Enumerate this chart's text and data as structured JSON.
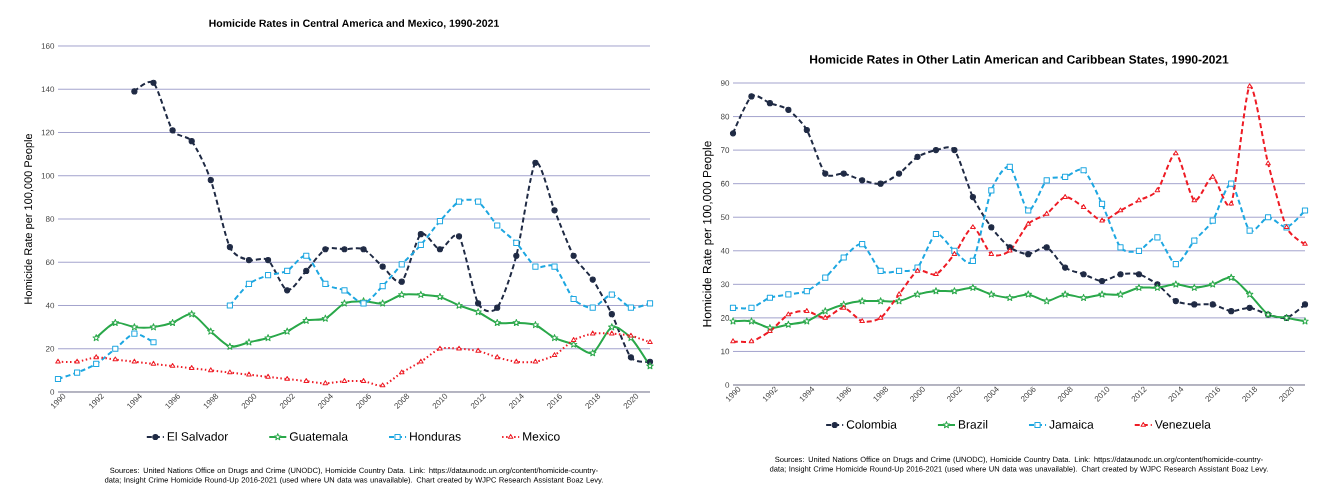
{
  "chart_data": [
    {
      "type": "line",
      "title": "Homicide Rates in Central America and Mexico, 1990-2021",
      "ylabel": "Homicide Rate per 100,000 People",
      "x": [
        1990,
        1991,
        1992,
        1993,
        1994,
        1995,
        1996,
        1997,
        1998,
        1999,
        2000,
        2001,
        2002,
        2003,
        2004,
        2005,
        2006,
        2007,
        2008,
        2009,
        2010,
        2011,
        2012,
        2013,
        2014,
        2015,
        2016,
        2017,
        2018,
        2019,
        2020,
        2021
      ],
      "xlim": [
        1990,
        2021
      ],
      "ylim": [
        0,
        160
      ],
      "xticks": [
        1990,
        1992,
        1994,
        1996,
        1998,
        2000,
        2002,
        2004,
        2006,
        2008,
        2010,
        2012,
        2014,
        2016,
        2018,
        2020
      ],
      "yticks": [
        0,
        20,
        40,
        60,
        80,
        100,
        120,
        140,
        160
      ],
      "grid": "y",
      "legend": "bottom",
      "annotations": [
        "Sources: United Nations Office on Drugs and Crime (UNODC), Homicide Country Data. Link: https://dataunodc.un.org/content/homicide-country-data; Insight Crime Homicide Round-Up 2016-2021 (used where UN data was unavailable). Chart created by WJPC Research Assistant Boaz Levy."
      ],
      "series": [
        {
          "name": "El Salvador",
          "color": "#1f2a44",
          "marker": "circle",
          "line_style": "dashed",
          "values": [
            null,
            null,
            null,
            null,
            139,
            143,
            121,
            116,
            98,
            67,
            61,
            61,
            47,
            56,
            66,
            66,
            66,
            58,
            51,
            73,
            66,
            72,
            41,
            39,
            63,
            106,
            84,
            63,
            52,
            36,
            16,
            14
          ]
        },
        {
          "name": "Guatemala",
          "color": "#2aa84a",
          "marker": "star",
          "line_style": "solid",
          "values": [
            null,
            null,
            25,
            32,
            30,
            30,
            32,
            36,
            28,
            21,
            23,
            25,
            28,
            33,
            34,
            41,
            42,
            41,
            45,
            45,
            44,
            40,
            37,
            32,
            32,
            31,
            25,
            22,
            18,
            30,
            25,
            12
          ]
        },
        {
          "name": "Honduras",
          "color": "#1ea7e1",
          "marker": "square",
          "line_style": "dashed",
          "values": [
            6,
            9,
            13,
            20,
            27,
            23,
            null,
            null,
            null,
            40,
            50,
            54,
            56,
            63,
            50,
            47,
            41,
            49,
            59,
            68,
            79,
            88,
            88,
            77,
            69,
            58,
            58,
            43,
            39,
            45,
            39,
            41
          ]
        },
        {
          "name": "Mexico",
          "color": "#ee1c25",
          "marker": "triangle",
          "line_style": "dotted",
          "values": [
            14,
            14,
            16,
            15,
            14,
            13,
            12,
            11,
            10,
            9,
            8,
            7,
            6,
            5,
            4,
            5,
            5,
            3,
            9,
            14,
            20,
            20,
            19,
            16,
            14,
            14,
            17,
            24,
            27,
            27,
            26,
            23
          ]
        }
      ]
    },
    {
      "type": "line",
      "title": "Homicide Rates in Other Latin American and Caribbean States, 1990-2021",
      "ylabel": "Homicide Rate per 100,000 People",
      "x": [
        1990,
        1991,
        1992,
        1993,
        1994,
        1995,
        1996,
        1997,
        1998,
        1999,
        2000,
        2001,
        2002,
        2003,
        2004,
        2005,
        2006,
        2007,
        2008,
        2009,
        2010,
        2011,
        2012,
        2013,
        2014,
        2015,
        2016,
        2017,
        2018,
        2019,
        2020,
        2021
      ],
      "xlim": [
        1990,
        2021
      ],
      "ylim": [
        0,
        90
      ],
      "xticks": [
        1990,
        1992,
        1994,
        1996,
        1998,
        2000,
        2002,
        2004,
        2006,
        2008,
        2010,
        2012,
        2014,
        2016,
        2018,
        2020
      ],
      "yticks": [
        0,
        10,
        20,
        30,
        40,
        50,
        60,
        70,
        80,
        90
      ],
      "grid": "y",
      "legend": "bottom",
      "annotations": [
        "Sources: United Nations Office on Drugs and Crime (UNODC), Homicide Country Data. Link: https://dataunodc.un.org/content/homicide-country-data; Insight Crime Homicide Round-Up 2016-2021 (used where UN data was unavailable). Chart created by WJPC Research Assistant Boaz Levy."
      ],
      "series": [
        {
          "name": "Colombia",
          "color": "#1f2a44",
          "marker": "circle",
          "line_style": "dashed",
          "values": [
            75,
            86,
            84,
            82,
            76,
            63,
            63,
            61,
            60,
            63,
            68,
            70,
            70,
            56,
            47,
            41,
            39,
            41,
            35,
            33,
            31,
            33,
            33,
            30,
            25,
            24,
            24,
            22,
            23,
            21,
            20,
            24
          ]
        },
        {
          "name": "Brazil",
          "color": "#2aa84a",
          "marker": "star",
          "line_style": "solid",
          "values": [
            19,
            19,
            17,
            18,
            19,
            22,
            24,
            25,
            25,
            25,
            27,
            28,
            28,
            29,
            27,
            26,
            27,
            25,
            27,
            26,
            27,
            27,
            29,
            29,
            30,
            29,
            30,
            32,
            27,
            21,
            20,
            19
          ]
        },
        {
          "name": "Jamaica",
          "color": "#1ea7e1",
          "marker": "square",
          "line_style": "dashed",
          "values": [
            23,
            23,
            26,
            27,
            28,
            32,
            38,
            42,
            34,
            34,
            35,
            45,
            40,
            37,
            58,
            65,
            52,
            61,
            62,
            64,
            54,
            41,
            40,
            44,
            36,
            43,
            49,
            60,
            46,
            50,
            47,
            52
          ]
        },
        {
          "name": "Venezuela",
          "color": "#ee1c25",
          "marker": "triangle",
          "line_style": "dashed",
          "values": [
            13,
            13,
            16,
            21,
            22,
            20,
            23,
            19,
            20,
            27,
            34,
            33,
            39,
            47,
            39,
            40,
            48,
            51,
            56,
            53,
            49,
            52,
            55,
            58,
            69,
            55,
            62,
            54,
            89,
            66,
            47,
            42
          ]
        }
      ]
    }
  ]
}
